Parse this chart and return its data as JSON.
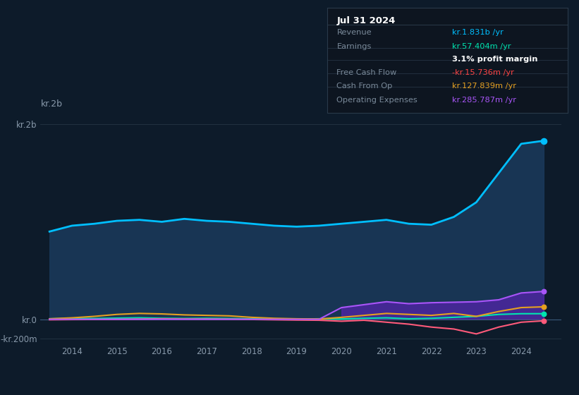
{
  "background_color": "#0d1b2a",
  "plot_bg_color": "#0d1b2a",
  "ylabel_top": "kr.2b",
  "ylim": [
    -250000000,
    2100000000
  ],
  "yticks": [
    -200000000,
    0,
    2000000000
  ],
  "ytick_labels": [
    "-kr.200m",
    "kr.0",
    "kr.2b"
  ],
  "legend": [
    "Revenue",
    "Earnings",
    "Free Cash Flow",
    "Cash From Op",
    "Operating Expenses"
  ],
  "legend_colors": [
    "#00bfff",
    "#00e5b0",
    "#ff5a7a",
    "#e5a020",
    "#a855f7"
  ],
  "tooltip": {
    "title": "Jul 31 2024",
    "rows": [
      {
        "label": "Revenue",
        "value": "kr.1.831b /yr",
        "value_color": "#00bfff",
        "bold": false
      },
      {
        "label": "Earnings",
        "value": "kr.57.404m /yr",
        "value_color": "#00e5b0",
        "bold": false
      },
      {
        "label": "",
        "value": "3.1% profit margin",
        "value_color": "#ffffff",
        "bold": true
      },
      {
        "label": "Free Cash Flow",
        "value": "-kr.15.736m /yr",
        "value_color": "#ff4444",
        "bold": false
      },
      {
        "label": "Cash From Op",
        "value": "kr.127.839m /yr",
        "value_color": "#e5a020",
        "bold": false
      },
      {
        "label": "Operating Expenses",
        "value": "kr.285.787m /yr",
        "value_color": "#a855f7",
        "bold": false
      }
    ]
  },
  "years": [
    2013.5,
    2014.0,
    2014.5,
    2015.0,
    2015.5,
    2016.0,
    2016.5,
    2017.0,
    2017.5,
    2018.0,
    2018.5,
    2019.0,
    2019.5,
    2020.0,
    2020.5,
    2021.0,
    2021.5,
    2022.0,
    2022.5,
    2023.0,
    2023.5,
    2024.0,
    2024.5
  ],
  "revenue": [
    900000000,
    960000000,
    980000000,
    1010000000,
    1020000000,
    1000000000,
    1030000000,
    1010000000,
    1000000000,
    980000000,
    960000000,
    950000000,
    960000000,
    980000000,
    1000000000,
    1020000000,
    980000000,
    970000000,
    1050000000,
    1200000000,
    1500000000,
    1800000000,
    1831000000
  ],
  "earnings": [
    5000000,
    10000000,
    8000000,
    12000000,
    15000000,
    10000000,
    8000000,
    10000000,
    8000000,
    5000000,
    3000000,
    2000000,
    5000000,
    3000000,
    10000000,
    15000000,
    5000000,
    10000000,
    20000000,
    30000000,
    50000000,
    57000000,
    57404000
  ],
  "free_cash_flow": [
    -5000000,
    -3000000,
    -2000000,
    -1000000,
    2000000,
    5000000,
    3000000,
    2000000,
    1000000,
    -2000000,
    -5000000,
    -8000000,
    -10000000,
    -20000000,
    -10000000,
    -30000000,
    -50000000,
    -80000000,
    -100000000,
    -150000000,
    -80000000,
    -30000000,
    -15736000
  ],
  "cash_from_op": [
    5000000,
    15000000,
    30000000,
    50000000,
    60000000,
    55000000,
    45000000,
    40000000,
    35000000,
    20000000,
    10000000,
    5000000,
    3000000,
    20000000,
    40000000,
    60000000,
    50000000,
    40000000,
    60000000,
    30000000,
    80000000,
    120000000,
    127839000
  ],
  "operating_expenses": [
    0,
    0,
    0,
    0,
    0,
    0,
    0,
    0,
    0,
    0,
    0,
    0,
    0,
    120000000,
    150000000,
    180000000,
    160000000,
    170000000,
    175000000,
    180000000,
    200000000,
    270000000,
    285787000
  ],
  "xticks": [
    2014,
    2015,
    2016,
    2017,
    2018,
    2019,
    2020,
    2021,
    2022,
    2023,
    2024
  ]
}
